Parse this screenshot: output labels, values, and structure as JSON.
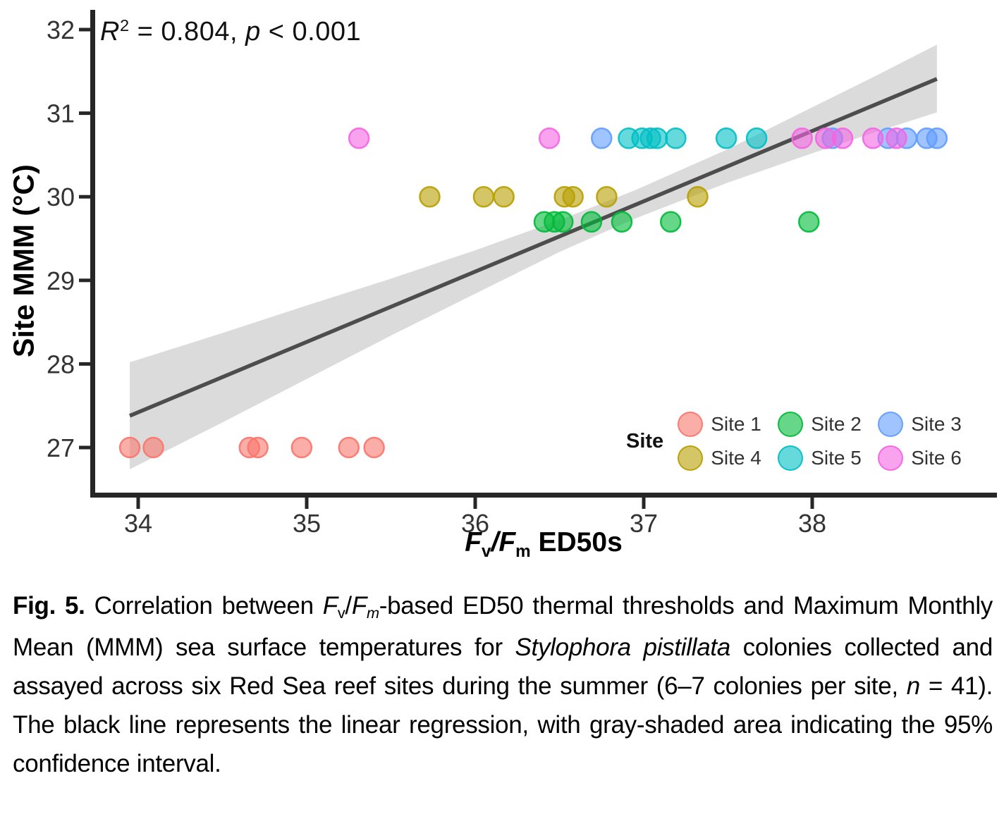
{
  "figure": {
    "annotation_segments": [
      {
        "t": "R",
        "s": "i"
      },
      {
        "t": "2",
        "s": "sup"
      },
      {
        "t": " = 0.804, ",
        "s": "n"
      },
      {
        "t": "p",
        "s": "i"
      },
      {
        "t": " < 0.001",
        "s": "n"
      }
    ],
    "x_axis_title_segments": [
      {
        "t": "F",
        "s": "bi"
      },
      {
        "t": "v",
        "s": "bsub"
      },
      {
        "t": "/",
        "s": "bi"
      },
      {
        "t": "F",
        "s": "bi"
      },
      {
        "t": "m",
        "s": "bsub"
      },
      {
        "t": " ED50s",
        "s": "b"
      }
    ],
    "y_axis_title": "Site MMM (°C)",
    "legend": {
      "title": "Site",
      "items": [
        {
          "label": "Site 1",
          "color": "#F8766D"
        },
        {
          "label": "Site 2",
          "color": "#00BA38"
        },
        {
          "label": "Site 3",
          "color": "#619CFF"
        },
        {
          "label": "Site 4",
          "color": "#B79F00"
        },
        {
          "label": "Site 5",
          "color": "#00BFC4"
        },
        {
          "label": "Site 6",
          "color": "#F564E3"
        }
      ]
    }
  },
  "chart_data": {
    "type": "scatter",
    "title": "",
    "xlabel": "Fv/Fm ED50s",
    "ylabel": "Site MMM (°C)",
    "annotation": "R2 = 0.804, p < 0.001",
    "xlim": [
      33.72,
      39.08
    ],
    "ylim": [
      26.43,
      32.23
    ],
    "x_ticks": [
      34,
      35,
      36,
      37,
      38
    ],
    "y_ticks": [
      27,
      28,
      29,
      30,
      31,
      32
    ],
    "grid": false,
    "legend_position": "inside bottom-right",
    "n": 41,
    "series": [
      {
        "name": "Site 1",
        "color": "#F8766D",
        "mmm": 27.0,
        "ed50s": [
          33.95,
          34.09,
          34.66,
          34.71,
          34.97,
          35.25,
          35.4
        ]
      },
      {
        "name": "Site 2",
        "color": "#00BA38",
        "mmm": 29.7,
        "ed50s": [
          36.41,
          36.47,
          36.52,
          36.69,
          36.87,
          37.16,
          37.98
        ]
      },
      {
        "name": "Site 3",
        "color": "#619CFF",
        "mmm": 30.7,
        "ed50s": [
          36.75,
          38.12,
          38.45,
          38.56,
          38.68,
          38.74
        ]
      },
      {
        "name": "Site 4",
        "color": "#B79F00",
        "mmm": 30.0,
        "ed50s": [
          35.73,
          36.05,
          36.17,
          36.53,
          36.58,
          36.78,
          37.32
        ]
      },
      {
        "name": "Site 5",
        "color": "#00BFC4",
        "mmm": 30.7,
        "ed50s": [
          36.91,
          36.99,
          37.04,
          37.08,
          37.19,
          37.49,
          37.67
        ]
      },
      {
        "name": "Site 6",
        "color": "#F564E3",
        "mmm": 30.7,
        "ed50s": [
          35.31,
          36.44,
          37.94,
          38.08,
          38.18,
          38.36,
          38.5
        ]
      }
    ],
    "regression": {
      "x": [
        33.95,
        38.74
      ],
      "y": [
        27.38,
        31.41
      ],
      "r_squared": 0.804,
      "p": "< 0.001",
      "color": "#4D4D4D"
    },
    "confidence_band": {
      "level": "95%",
      "color": "#DBDBDB",
      "points": [
        {
          "x": 33.95,
          "lo": 26.74,
          "hi": 28.02
        },
        {
          "x": 34.5,
          "lo": 27.3,
          "hi": 28.37
        },
        {
          "x": 35.0,
          "lo": 27.82,
          "hi": 28.7
        },
        {
          "x": 35.5,
          "lo": 28.34,
          "hi": 29.02
        },
        {
          "x": 36.0,
          "lo": 28.84,
          "hi": 29.36
        },
        {
          "x": 36.5,
          "lo": 29.34,
          "hi": 29.72
        },
        {
          "x": 36.95,
          "lo": 29.74,
          "hi": 30.08
        },
        {
          "x": 37.5,
          "lo": 30.17,
          "hi": 30.57
        },
        {
          "x": 38.0,
          "lo": 30.52,
          "hi": 31.07
        },
        {
          "x": 38.4,
          "lo": 30.79,
          "hi": 31.47
        },
        {
          "x": 38.74,
          "lo": 31.01,
          "hi": 31.82
        }
      ]
    }
  },
  "caption": {
    "segments": [
      {
        "t": "Fig. 5.",
        "s": "b"
      },
      {
        "t": " Correlation between ",
        "s": "n"
      },
      {
        "t": "F",
        "s": "i"
      },
      {
        "t": "v",
        "s": "sub"
      },
      {
        "t": "/",
        "s": "n"
      },
      {
        "t": "F",
        "s": "i"
      },
      {
        "t": "m",
        "s": "isub"
      },
      {
        "t": "-based ED50 thermal thresholds and Maximum Monthly Mean (MMM) sea surface temperatures for ",
        "s": "n"
      },
      {
        "t": "Stylophora pistillata",
        "s": "i"
      },
      {
        "t": " colonies collected and assayed across six Red Sea reef sites during the summer (6–7 colonies per site, ",
        "s": "n"
      },
      {
        "t": "n",
        "s": "i"
      },
      {
        "t": " = 41). The black line represents the linear regression, with gray-shaded area indicating the 95% confidence interval.",
        "s": "n"
      }
    ]
  }
}
